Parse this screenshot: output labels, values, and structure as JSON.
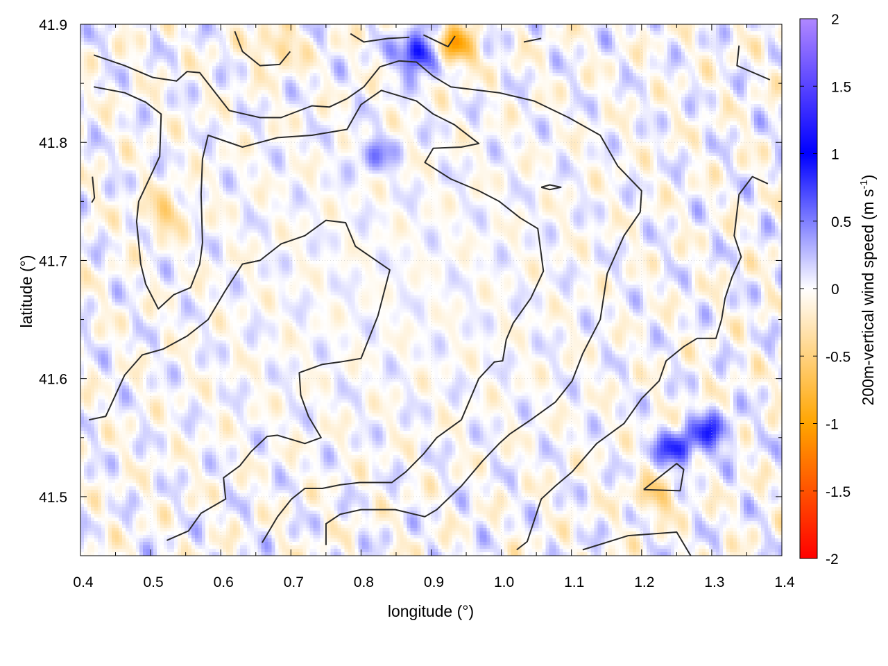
{
  "chart_data": {
    "type": "heatmap",
    "xlabel": "longitude (°)",
    "ylabel": "latitude (°)",
    "colorbar_label": "200m-vertical wind speed (m s",
    "colorbar_label_sup": "-1",
    "colorbar_label_end": ")",
    "xlim": [
      0.4,
      1.4
    ],
    "ylim": [
      41.45,
      41.9
    ],
    "zlim": [
      -2,
      2
    ],
    "xticks": [
      "0.4",
      "0.5",
      "0.6",
      "0.7",
      "0.8",
      "0.9",
      "1.0",
      "1.1",
      "1.2",
      "1.3",
      "1.4"
    ],
    "xtick_values": [
      0.4,
      0.5,
      0.6,
      0.7,
      0.8,
      0.9,
      1.0,
      1.1,
      1.2,
      1.3,
      1.4
    ],
    "yticks": [
      "41.5",
      "41.6",
      "41.7",
      "41.8",
      "41.9"
    ],
    "ytick_values": [
      41.5,
      41.6,
      41.7,
      41.8,
      41.9
    ],
    "cbticks": [
      "2",
      "1.5",
      "1",
      "0.5",
      "0",
      "-0.5",
      "-1",
      "-1.5",
      "-2"
    ],
    "cbtick_values": [
      2,
      1.5,
      1,
      0.5,
      0,
      -0.5,
      -1,
      -1.5,
      -2
    ],
    "grid": true,
    "colormap": [
      {
        "z": -2,
        "color": "#ff0000"
      },
      {
        "z": -1,
        "color": "#ffa500"
      },
      {
        "z": 0,
        "color": "#ffffff"
      },
      {
        "z": 1,
        "color": "#0000ff"
      },
      {
        "z": 2,
        "color": "#b088ff"
      }
    ],
    "hotspots": [
      {
        "lon": 0.885,
        "lat": 41.875,
        "z": 1.2
      },
      {
        "lon": 0.93,
        "lat": 41.88,
        "z": -1.1
      },
      {
        "lon": 0.52,
        "lat": 41.74,
        "z": -0.5
      },
      {
        "lon": 1.25,
        "lat": 41.54,
        "z": 0.8
      },
      {
        "lon": 1.3,
        "lat": 41.555,
        "z": 0.7
      },
      {
        "lon": 1.22,
        "lat": 41.5,
        "z": -0.5
      },
      {
        "lon": 0.82,
        "lat": 41.79,
        "z": 0.4
      },
      {
        "lon": 0.68,
        "lat": 41.88,
        "z": -0.5
      }
    ],
    "contours": [
      [
        [
          0.412,
          41.565
        ],
        [
          0.436,
          41.568
        ],
        [
          0.463,
          41.603
        ],
        [
          0.488,
          41.62
        ],
        [
          0.518,
          41.625
        ],
        [
          0.552,
          41.636
        ],
        [
          0.582,
          41.65
        ],
        [
          0.606,
          41.674
        ],
        [
          0.631,
          41.697
        ],
        [
          0.656,
          41.7
        ],
        [
          0.686,
          41.714
        ],
        [
          0.72,
          41.721
        ],
        [
          0.75,
          41.734
        ],
        [
          0.778,
          41.732
        ],
        [
          0.792,
          41.712
        ],
        [
          0.841,
          41.692
        ],
        [
          0.824,
          41.653
        ],
        [
          0.8,
          41.617
        ],
        [
          0.77,
          41.614
        ],
        [
          0.745,
          41.612
        ],
        [
          0.712,
          41.605
        ],
        [
          0.714,
          41.586
        ],
        [
          0.725,
          41.568
        ],
        [
          0.743,
          41.55
        ],
        [
          0.72,
          41.545
        ],
        [
          0.681,
          41.552
        ],
        [
          0.666,
          41.551
        ],
        [
          0.643,
          41.538
        ],
        [
          0.627,
          41.526
        ],
        [
          0.604,
          41.516
        ],
        [
          0.607,
          41.498
        ],
        [
          0.572,
          41.486
        ],
        [
          0.554,
          41.471
        ],
        [
          0.523,
          41.463
        ]
      ],
      [
        [
          0.419,
          41.874
        ],
        [
          0.463,
          41.865
        ],
        [
          0.503,
          41.855
        ],
        [
          0.537,
          41.852
        ],
        [
          0.552,
          41.86
        ],
        [
          0.57,
          41.859
        ],
        [
          0.612,
          41.827
        ],
        [
          0.656,
          41.821
        ],
        [
          0.686,
          41.821
        ],
        [
          0.73,
          41.831
        ],
        [
          0.755,
          41.83
        ],
        [
          0.78,
          41.837
        ],
        [
          0.804,
          41.847
        ],
        [
          0.827,
          41.864
        ],
        [
          0.854,
          41.869
        ],
        [
          0.879,
          41.868
        ],
        [
          0.903,
          41.856
        ],
        [
          0.928,
          41.847
        ],
        [
          0.997,
          41.842
        ],
        [
          1.047,
          41.835
        ],
        [
          1.096,
          41.821
        ],
        [
          1.141,
          41.806
        ],
        [
          1.166,
          41.78
        ],
        [
          1.2,
          41.759
        ],
        [
          1.198,
          41.741
        ],
        [
          1.175,
          41.721
        ],
        [
          1.151,
          41.689
        ],
        [
          1.141,
          41.65
        ],
        [
          1.116,
          41.621
        ],
        [
          1.101,
          41.598
        ],
        [
          1.077,
          41.58
        ],
        [
          1.042,
          41.565
        ],
        [
          1.012,
          41.553
        ],
        [
          0.997,
          41.545
        ],
        [
          0.973,
          41.53
        ],
        [
          0.943,
          41.509
        ],
        [
          0.908,
          41.489
        ],
        [
          0.891,
          41.483
        ],
        [
          0.849,
          41.489
        ],
        [
          0.8,
          41.489
        ],
        [
          0.77,
          41.485
        ],
        [
          0.75,
          41.477
        ],
        [
          0.75,
          41.459
        ]
      ],
      [
        [
          0.419,
          41.847
        ],
        [
          0.463,
          41.842
        ],
        [
          0.493,
          41.834
        ],
        [
          0.515,
          41.824
        ],
        [
          0.513,
          41.788
        ],
        [
          0.483,
          41.75
        ],
        [
          0.48,
          41.733
        ],
        [
          0.486,
          41.697
        ],
        [
          0.493,
          41.68
        ],
        [
          0.511,
          41.659
        ],
        [
          0.533,
          41.671
        ],
        [
          0.557,
          41.677
        ],
        [
          0.57,
          41.697
        ],
        [
          0.574,
          41.715
        ],
        [
          0.572,
          41.756
        ],
        [
          0.574,
          41.786
        ],
        [
          0.582,
          41.806
        ],
        [
          0.631,
          41.796
        ],
        [
          0.681,
          41.804
        ],
        [
          0.73,
          41.806
        ],
        [
          0.78,
          41.811
        ],
        [
          0.8,
          41.832
        ],
        [
          0.829,
          41.844
        ],
        [
          0.879,
          41.835
        ],
        [
          0.903,
          41.824
        ],
        [
          0.933,
          41.815
        ],
        [
          0.968,
          41.799
        ],
        [
          0.943,
          41.796
        ],
        [
          0.903,
          41.795
        ],
        [
          0.891,
          41.783
        ],
        [
          0.928,
          41.769
        ],
        [
          0.968,
          41.759
        ],
        [
          0.997,
          41.75
        ],
        [
          1.027,
          41.736
        ],
        [
          1.052,
          41.727
        ],
        [
          1.06,
          41.691
        ],
        [
          1.042,
          41.668
        ],
        [
          1.017,
          41.647
        ],
        [
          1.007,
          41.633
        ],
        [
          1.002,
          41.615
        ],
        [
          0.99,
          41.614
        ],
        [
          0.968,
          41.6
        ],
        [
          0.943,
          41.565
        ],
        [
          0.908,
          41.55
        ],
        [
          0.889,
          41.536
        ],
        [
          0.864,
          41.521
        ],
        [
          0.844,
          41.512
        ],
        [
          0.798,
          41.512
        ],
        [
          0.77,
          41.51
        ],
        [
          0.745,
          41.507
        ],
        [
          0.72,
          41.507
        ],
        [
          0.701,
          41.498
        ],
        [
          0.681,
          41.483
        ],
        [
          0.659,
          41.461
        ]
      ],
      [
        [
          1.38,
          41.765
        ],
        [
          1.358,
          41.771
        ],
        [
          1.339,
          41.756
        ],
        [
          1.332,
          41.721
        ],
        [
          1.342,
          41.703
        ],
        [
          1.329,
          41.686
        ],
        [
          1.319,
          41.668
        ],
        [
          1.314,
          41.65
        ],
        [
          1.306,
          41.634
        ],
        [
          1.279,
          41.634
        ],
        [
          1.26,
          41.627
        ],
        [
          1.235,
          41.615
        ],
        [
          1.225,
          41.598
        ],
        [
          1.2,
          41.583
        ],
        [
          1.175,
          41.562
        ],
        [
          1.136,
          41.545
        ],
        [
          1.101,
          41.521
        ],
        [
          1.077,
          41.509
        ],
        [
          1.057,
          41.498
        ],
        [
          1.037,
          41.462
        ],
        [
          1.022,
          41.455
        ]
      ],
      [
        [
          1.116,
          41.455
        ],
        [
          1.181,
          41.467
        ],
        [
          1.25,
          41.47
        ],
        [
          1.27,
          41.45
        ]
      ],
      [
        [
          1.203,
          41.506
        ],
        [
          1.25,
          41.528
        ],
        [
          1.26,
          41.523
        ],
        [
          1.255,
          41.505
        ],
        [
          1.203,
          41.506
        ]
      ],
      [
        [
          0.62,
          41.894
        ],
        [
          0.631,
          41.877
        ],
        [
          0.656,
          41.865
        ],
        [
          0.684,
          41.866
        ],
        [
          0.699,
          41.877
        ]
      ],
      [
        [
          0.785,
          41.892
        ],
        [
          0.804,
          41.885
        ],
        [
          0.839,
          41.888
        ],
        [
          0.869,
          41.889
        ]
      ],
      [
        [
          0.889,
          41.891
        ],
        [
          0.924,
          41.881
        ],
        [
          0.934,
          41.89
        ]
      ],
      [
        [
          1.032,
          41.885
        ],
        [
          1.057,
          41.888
        ]
      ],
      [
        [
          1.339,
          41.882
        ],
        [
          1.336,
          41.865
        ],
        [
          1.383,
          41.853
        ]
      ],
      [
        [
          0.417,
          41.771
        ],
        [
          0.42,
          41.753
        ],
        [
          0.416,
          41.749
        ]
      ],
      [
        [
          1.057,
          41.762
        ],
        [
          1.069,
          41.764
        ],
        [
          1.085,
          41.762
        ],
        [
          1.069,
          41.76
        ],
        [
          1.057,
          41.762
        ]
      ]
    ]
  }
}
